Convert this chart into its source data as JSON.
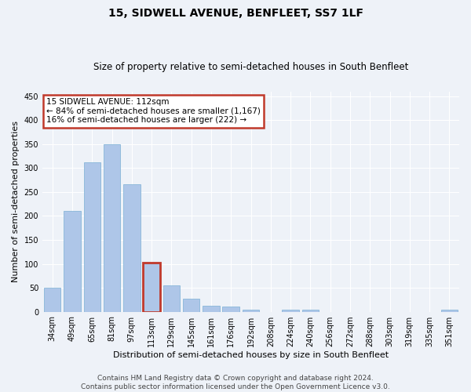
{
  "title": "15, SIDWELL AVENUE, BENFLEET, SS7 1LF",
  "subtitle": "Size of property relative to semi-detached houses in South Benfleet",
  "xlabel": "Distribution of semi-detached houses by size in South Benfleet",
  "ylabel": "Number of semi-detached properties",
  "categories": [
    "34sqm",
    "49sqm",
    "65sqm",
    "81sqm",
    "97sqm",
    "113sqm",
    "129sqm",
    "145sqm",
    "161sqm",
    "176sqm",
    "192sqm",
    "208sqm",
    "224sqm",
    "240sqm",
    "256sqm",
    "272sqm",
    "288sqm",
    "303sqm",
    "319sqm",
    "335sqm",
    "351sqm"
  ],
  "values": [
    50,
    210,
    312,
    350,
    267,
    103,
    55,
    27,
    13,
    11,
    5,
    0,
    5,
    5,
    0,
    0,
    0,
    0,
    0,
    0,
    4
  ],
  "highlight_index": 5,
  "highlight_bar_color": "#aec6e8",
  "highlight_edge_color": "#c0392b",
  "normal_bar_color": "#aec6e8",
  "normal_edge_color": "#7bafd4",
  "ylim": [
    0,
    460
  ],
  "yticks": [
    0,
    50,
    100,
    150,
    200,
    250,
    300,
    350,
    400,
    450
  ],
  "annotation_title": "15 SIDWELL AVENUE: 112sqm",
  "annotation_line1": "← 84% of semi-detached houses are smaller (1,167)",
  "annotation_line2": "16% of semi-detached houses are larger (222) →",
  "annotation_box_color": "#ffffff",
  "annotation_box_edge": "#c0392b",
  "footer1": "Contains HM Land Registry data © Crown copyright and database right 2024.",
  "footer2": "Contains public sector information licensed under the Open Government Licence v3.0.",
  "background_color": "#eef2f8",
  "grid_color": "#ffffff",
  "title_fontsize": 10,
  "subtitle_fontsize": 8.5,
  "xlabel_fontsize": 8,
  "ylabel_fontsize": 8,
  "tick_fontsize": 7,
  "footer_fontsize": 6.5,
  "annotation_fontsize": 7.5
}
